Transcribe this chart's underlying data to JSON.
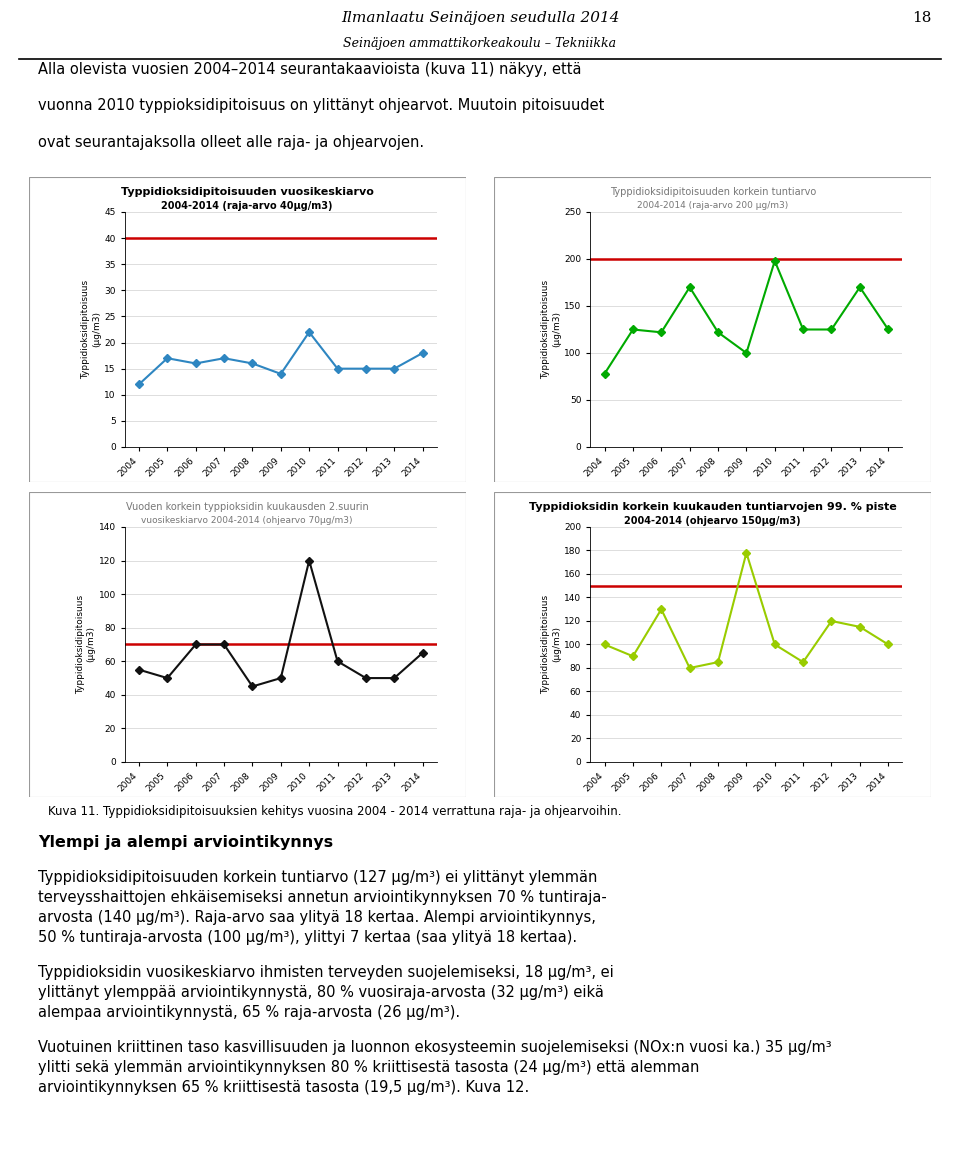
{
  "page_title": "Ilmanlaatu Seinäjoen seudulla 2014",
  "page_subtitle": "Seinäjoen ammattikorkeakoulu – Tekniikka",
  "page_number": "18",
  "caption_text": "Kuva 11. Typpidioksidipitoisuuksien kehitys vuosina 2004 - 2014 verrattuna raja- ja ohjearvoihin.",
  "section_heading": "Ylempi ja alempi arviointikynnys",
  "chart1": {
    "title": "Typpidioksidipitoisuuden vuosikeskiarvo",
    "title2": "2004-2014 (raja-arvo 40μg/m3)",
    "years": [
      2004,
      2005,
      2006,
      2007,
      2008,
      2009,
      2010,
      2011,
      2012,
      2013,
      2014
    ],
    "values": [
      12,
      17,
      16,
      17,
      16,
      14,
      22,
      15,
      15,
      15,
      18
    ],
    "limit": 40,
    "ylim": [
      0,
      45
    ],
    "yticks": [
      0,
      5,
      10,
      15,
      20,
      25,
      30,
      35,
      40,
      45
    ],
    "color": "#2E86C1",
    "limit_color": "#cc0000",
    "ylabel": "Typpidioksidipitoisuus\n(μg/m3)",
    "title_bold": true,
    "title_color": "black"
  },
  "chart2": {
    "title": "Typpidioksidipitoisuuden korkein tuntiarvo",
    "title2": "2004-2014 (raja-arvo 200 μg/m3)",
    "years": [
      2004,
      2005,
      2006,
      2007,
      2008,
      2009,
      2010,
      2011,
      2012,
      2013,
      2014
    ],
    "values": [
      78,
      125,
      122,
      170,
      122,
      100,
      198,
      125,
      125,
      170,
      125
    ],
    "limit": 200,
    "ylim": [
      0,
      250
    ],
    "yticks": [
      0,
      50,
      100,
      150,
      200,
      250
    ],
    "color": "#00aa00",
    "limit_color": "#cc0000",
    "ylabel": "Typpidioksidipitoisuus\n(μg/m3)",
    "title_bold": false,
    "title_color": "#777777"
  },
  "chart3": {
    "title": "Vuoden korkein typpioksidin kuukausden 2.suurin",
    "title2": "vuosikeskiarvo 2004-2014 (ohjearvo 70μg/m3)",
    "years": [
      2004,
      2005,
      2006,
      2007,
      2008,
      2009,
      2010,
      2011,
      2012,
      2013,
      2014
    ],
    "values": [
      55,
      50,
      70,
      70,
      45,
      50,
      120,
      60,
      50,
      50,
      65
    ],
    "limit": 70,
    "ylim": [
      0,
      140
    ],
    "yticks": [
      0,
      20,
      40,
      60,
      80,
      100,
      120,
      140
    ],
    "color": "#111111",
    "limit_color": "#cc0000",
    "ylabel": "Typpidioksidipitoisuus\n(μg/m3)",
    "title_bold": false,
    "title_color": "#777777"
  },
  "chart4": {
    "title": "Typpidioksidin korkein kuukauden tuntiarvojen 99. % piste",
    "title2": "2004-2014 (ohjearvo 150μg/m3)",
    "years": [
      2004,
      2005,
      2006,
      2007,
      2008,
      2009,
      2010,
      2011,
      2012,
      2013,
      2014
    ],
    "values": [
      100,
      90,
      130,
      80,
      85,
      178,
      100,
      85,
      120,
      115,
      100
    ],
    "limit": 150,
    "ylim": [
      0,
      200
    ],
    "yticks": [
      0,
      20,
      40,
      60,
      80,
      100,
      120,
      140,
      160,
      180,
      200
    ],
    "color": "#99cc00",
    "limit_color": "#cc0000",
    "ylabel": "Typpidioksidipitoisuus\n(μg/m3)",
    "title_bold": true,
    "title_color": "black"
  }
}
